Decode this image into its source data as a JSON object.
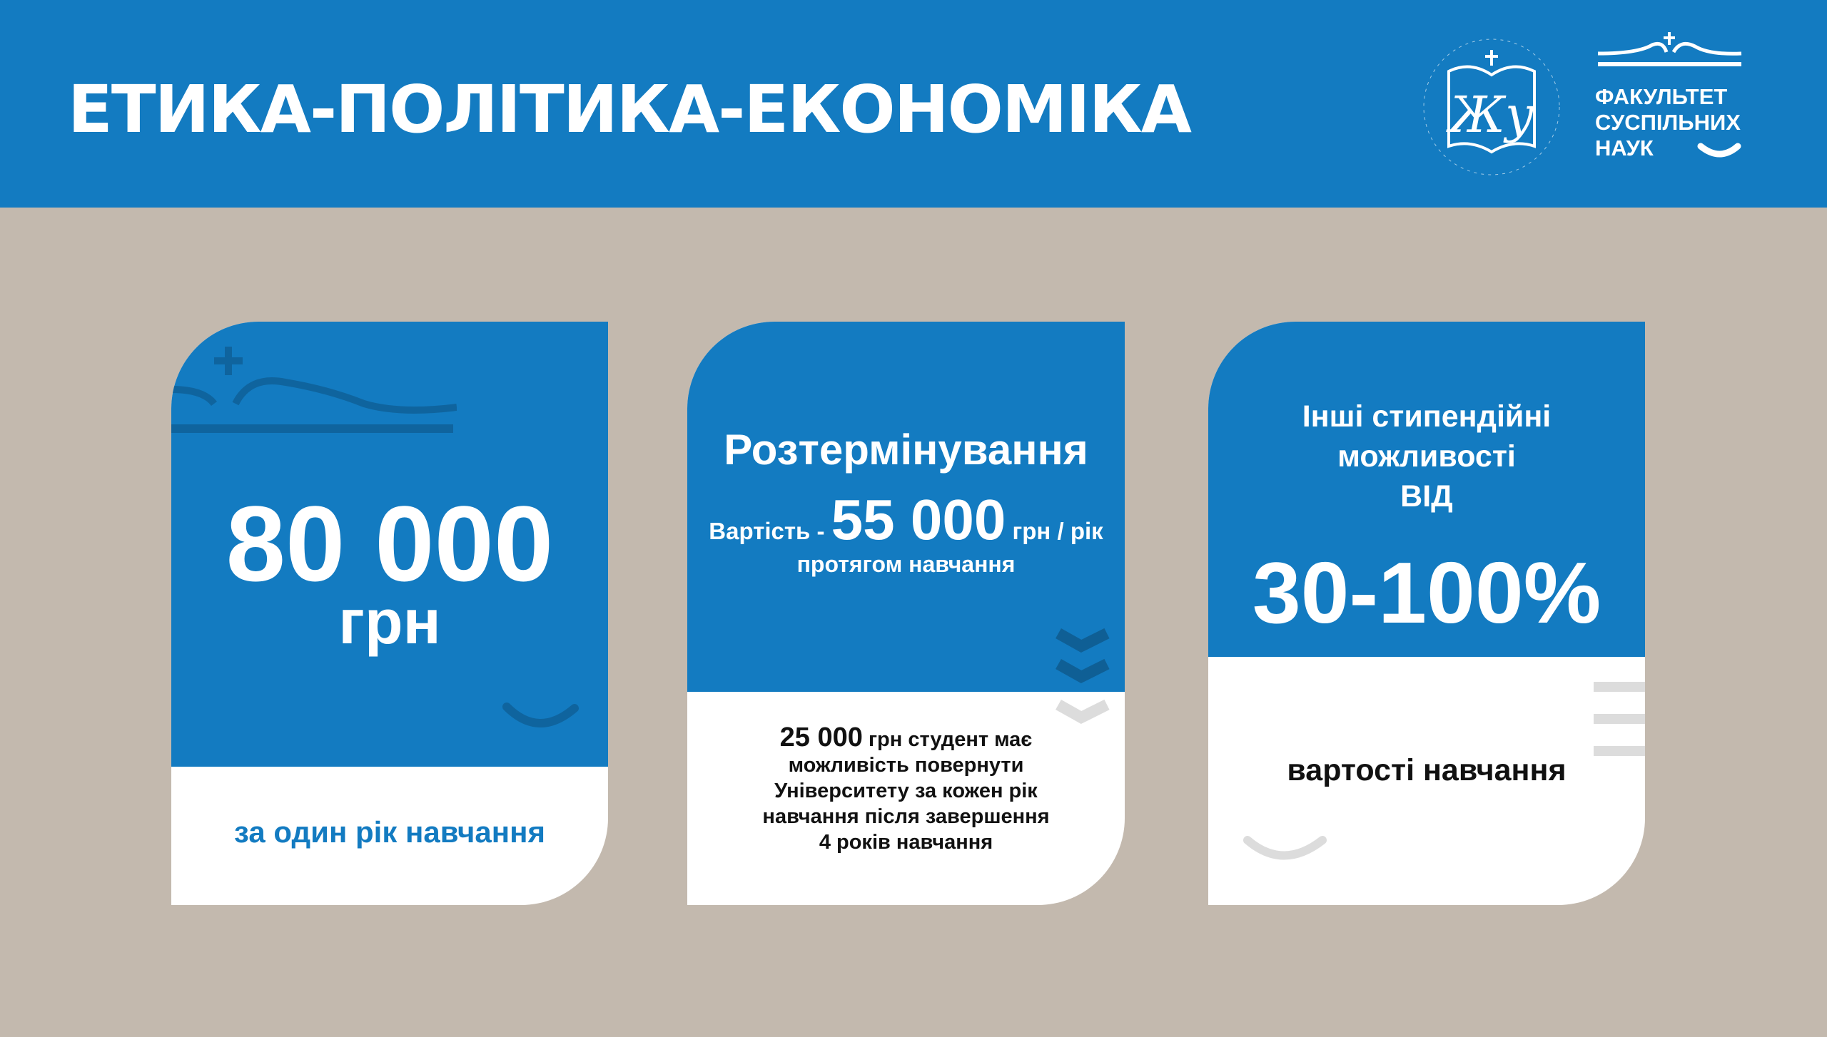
{
  "header": {
    "title": "ЕТИКА-ПОЛІТИКА-ЕКОНОМІКА",
    "logo_university": "Український католицький університет",
    "logo_faculty": [
      "ФАКУЛЬТЕТ",
      "СУСПІЛЬНИХ",
      "НАУК"
    ]
  },
  "colors": {
    "brand_blue": "#137bc1",
    "background": "#c3b9ae"
  },
  "cards": [
    {
      "amount": "80 000",
      "unit": "грн",
      "caption": "за один рік навчання"
    },
    {
      "heading": "Розтермінування",
      "price_prefix": "Вартість -",
      "price": "55 000",
      "price_suffix": "грн / рік",
      "price_note": "протягом навчання",
      "return_amount": "25 000",
      "return_text_1": "грн студент має",
      "return_lines": [
        "можливість повернути",
        "Університету за кожен рік",
        "навчання після завершення",
        "4 років навчання"
      ]
    },
    {
      "heading_lines": [
        "Інші стипендійні",
        "можливості",
        "ВІД"
      ],
      "range": "30-100%",
      "caption": "вартості навчання"
    }
  ]
}
